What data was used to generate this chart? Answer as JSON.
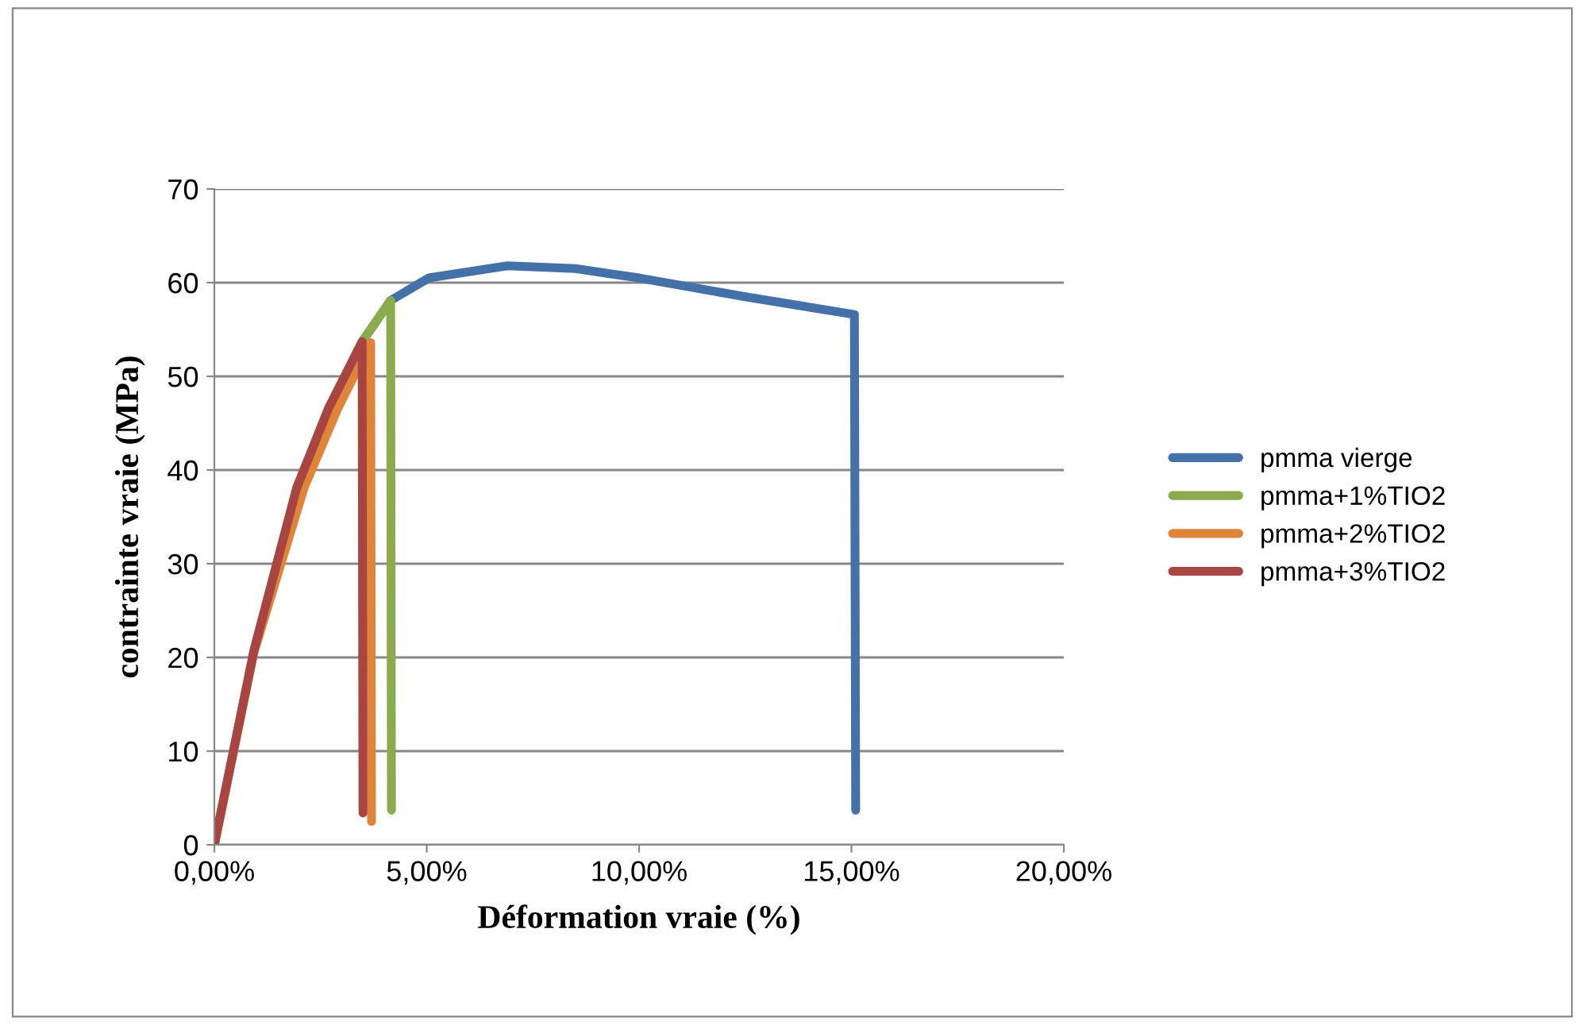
{
  "chart_data": {
    "type": "line",
    "xlabel": "Déformation vraie (%)",
    "ylabel": "contrainte vraie (MPa)",
    "xlim": [
      0,
      20
    ],
    "ylim": [
      0,
      70
    ],
    "xticks": [
      {
        "value": 0,
        "label": "0,00%"
      },
      {
        "value": 5,
        "label": "5,00%"
      },
      {
        "value": 10,
        "label": "10,00%"
      },
      {
        "value": 15,
        "label": "15,00%"
      },
      {
        "value": 20,
        "label": "20,00%"
      }
    ],
    "yticks": [
      0,
      10,
      20,
      30,
      40,
      50,
      60,
      70
    ],
    "grid": "y",
    "legend": "right",
    "marker": "none",
    "line_style": "solid",
    "series": [
      {
        "name": "pmma vierge",
        "color": "#4472a8",
        "x": [
          3.48,
          4.15,
          5.05,
          6.9,
          8.5,
          10.0,
          12.5,
          15.07,
          15.1
        ],
        "values": [
          53.7,
          58.1,
          60.5,
          61.8,
          61.5,
          60.5,
          58.5,
          56.6,
          3.7
        ]
      },
      {
        "name": "pmma+1%TIO2",
        "color": "#8bab4e",
        "x": [
          0,
          0.93,
          1.94,
          2.69,
          3.48,
          4.15,
          4.17
        ],
        "values": [
          0,
          20.7,
          38.1,
          46.6,
          53.7,
          58.1,
          3.7
        ]
      },
      {
        "name": "pmma+2%TIO2",
        "color": "#e0843a",
        "x": [
          0,
          0.93,
          2.12,
          2.9,
          3.68,
          3.7
        ],
        "values": [
          0,
          20.5,
          38.2,
          46.5,
          53.6,
          2.5
        ]
      },
      {
        "name": "pmma+3%TIO2",
        "color": "#a84442",
        "x": [
          0,
          0.93,
          1.94,
          2.69,
          3.48,
          3.5
        ],
        "values": [
          0,
          20.7,
          38.1,
          46.6,
          53.7,
          3.4
        ]
      }
    ]
  }
}
